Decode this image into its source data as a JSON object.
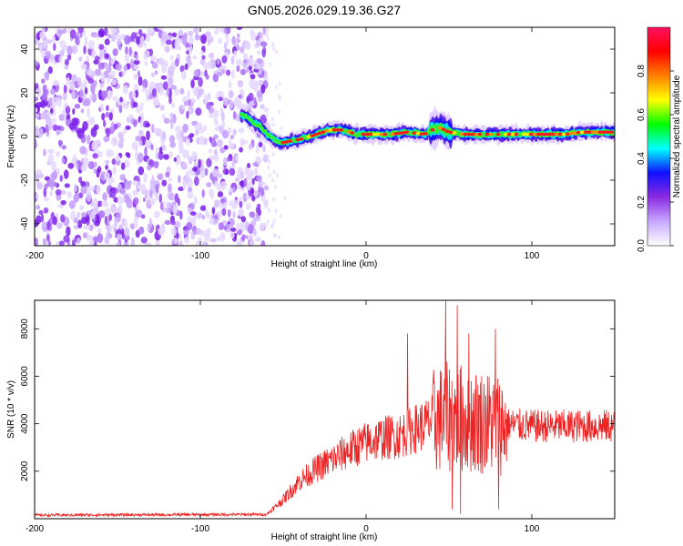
{
  "title": "GN05.2026.029.19.36.G27",
  "chart_data": [
    {
      "type": "heatmap",
      "xlabel": "Height of straight line (km)",
      "ylabel": "Frequency (Hz)",
      "xlim": [
        -200,
        150
      ],
      "ylim": [
        -50,
        50
      ],
      "xticks": [
        -200,
        -100,
        0,
        100
      ],
      "yticks": [
        -40,
        -20,
        0,
        20,
        40
      ],
      "colorbar": {
        "label": "Normalized spectral amplitude",
        "range": [
          0,
          1
        ],
        "ticks": [
          0.0,
          0.2,
          0.4,
          0.6,
          0.8
        ],
        "tick_labels": [
          "0.0",
          "0.2",
          "0.4",
          "0.6",
          "0.8"
        ],
        "colors": [
          "#ffffff",
          "#c8a8ff",
          "#8a2be2",
          "#1010ff",
          "#00ffff",
          "#00ff00",
          "#ffff00",
          "#ff8000",
          "#ff0000",
          "#ff1060"
        ]
      },
      "noise_region": {
        "x_range": [
          -200,
          -60
        ],
        "f_range": [
          -50,
          50
        ]
      },
      "tone_track": {
        "x": [
          -75,
          -65,
          -58,
          -52,
          -45,
          -38,
          -30,
          -22,
          -15,
          -5,
          5,
          15,
          25,
          35,
          40,
          45,
          50,
          60,
          70,
          80,
          90,
          100,
          110,
          120,
          130,
          140,
          150
        ],
        "f": [
          10,
          5,
          0,
          -3,
          -2,
          -1,
          1,
          3,
          3,
          1,
          1,
          1,
          2,
          1,
          3,
          4,
          2,
          1,
          1,
          1,
          1,
          1,
          1,
          1,
          2,
          2,
          2
        ]
      }
    },
    {
      "type": "line",
      "xlabel": "Height of straight line (km)",
      "ylabel": "SNR (10 * v/v)",
      "xlim": [
        -200,
        150
      ],
      "ylim": [
        0,
        9200
      ],
      "xticks": [
        -200,
        -100,
        0,
        100
      ],
      "yticks": [
        2000,
        4000,
        6000,
        8000
      ],
      "color": "#ee2222",
      "trend": {
        "x": [
          -200,
          -60,
          -50,
          -40,
          -30,
          -20,
          -10,
          0,
          10,
          20,
          30,
          40,
          50,
          60,
          70,
          80,
          100,
          120,
          150
        ],
        "snr": [
          150,
          180,
          800,
          1600,
          2100,
          2500,
          2900,
          3200,
          3400,
          3500,
          3800,
          4100,
          4300,
          4200,
          4100,
          4000,
          3900,
          3900,
          3900
        ]
      },
      "spikes": [
        {
          "x": 25,
          "snr": 7800
        },
        {
          "x": 48,
          "snr": 9200
        },
        {
          "x": 52,
          "snr": 400
        },
        {
          "x": 55,
          "snr": 9000
        },
        {
          "x": 57,
          "snr": 200
        },
        {
          "x": 62,
          "snr": 7800
        },
        {
          "x": 78,
          "snr": 8000
        },
        {
          "x": 80,
          "snr": 400
        }
      ]
    }
  ]
}
